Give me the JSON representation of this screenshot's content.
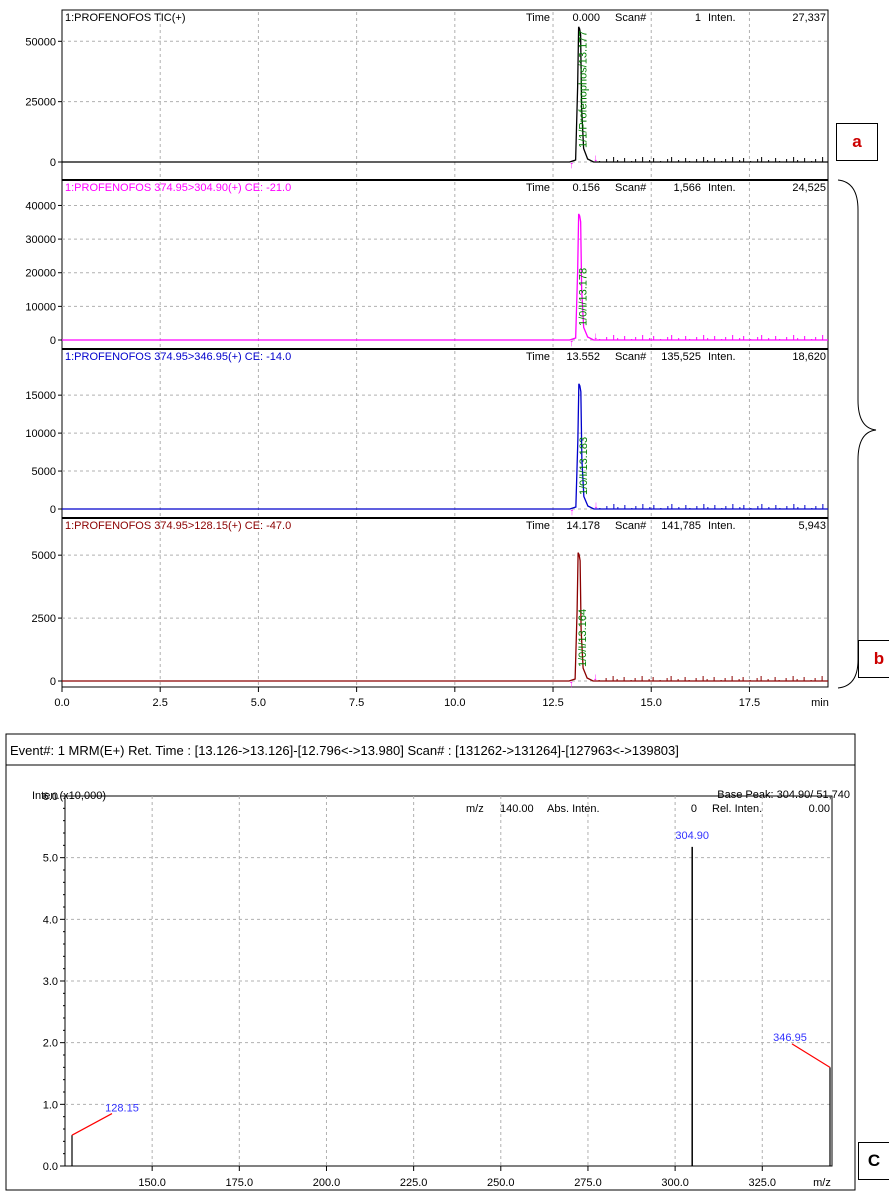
{
  "chromatogram": {
    "x_axis": {
      "unit": "min",
      "ticks": [
        "0.0",
        "2.5",
        "5.0",
        "7.5",
        "10.0",
        "12.5",
        "15.0",
        "17.5"
      ],
      "range": [
        0,
        19.5
      ]
    },
    "panels": [
      {
        "title": "1:PROFENOFOS TIC(+)",
        "color": "#000000",
        "time_label": "Time",
        "time": "0.000",
        "scan_label": "Scan#",
        "scan": "1",
        "inten_label": "Inten.",
        "inten": "27,337",
        "y_ticks": [
          "50000",
          "25000",
          "0"
        ],
        "y_tick_values": [
          50000,
          25000,
          0
        ],
        "y_max": 58000,
        "peak_label": "1/1/Profenophos/13.177",
        "peak_rt": 13.177,
        "peak_height": 56000
      },
      {
        "title": "1:PROFENOFOS 374.95>304.90(+) CE: -21.0",
        "color": "#ff00ff",
        "time_label": "Time",
        "time": "0.156",
        "scan_label": "Scan#",
        "scan": "1,566",
        "inten_label": "Inten.",
        "inten": "24,525",
        "y_ticks": [
          "40000",
          "30000",
          "20000",
          "10000",
          "0"
        ],
        "y_tick_values": [
          40000,
          30000,
          20000,
          10000,
          0
        ],
        "y_max": 44000,
        "peak_label": "1/0/I/13.178",
        "peak_rt": 13.178,
        "peak_height": 37500
      },
      {
        "title": "1:PROFENOFOS 374.95>346.95(+) CE: -14.0",
        "color": "#0000cc",
        "time_label": "Time",
        "time": "13.552",
        "scan_label": "Scan#",
        "scan": "135,525",
        "inten_label": "Inten.",
        "inten": "18,620",
        "y_ticks": [
          "15000",
          "10000",
          "5000",
          "0"
        ],
        "y_tick_values": [
          15000,
          10000,
          5000,
          0
        ],
        "y_max": 19500,
        "peak_label": "1/0/I/13.183",
        "peak_rt": 13.183,
        "peak_height": 16500
      },
      {
        "title": "1:PROFENOFOS 374.95>128.15(+) CE: -47.0",
        "color": "#8b0000",
        "time_label": "Time",
        "time": "14.178",
        "scan_label": "Scan#",
        "scan": "141,785",
        "inten_label": "Inten.",
        "inten": "5,943",
        "y_ticks": [
          "5000",
          "2500",
          "0"
        ],
        "y_tick_values": [
          5000,
          2500,
          0
        ],
        "y_max": 6000,
        "peak_label": "1/0/I/13.164",
        "peak_rt": 13.164,
        "peak_height": 5100
      }
    ]
  },
  "spectrum": {
    "header": "Event#: 1 MRM(E+)  Ret. Time : [13.126->13.126]-[12.796<->13.980]  Scan# : [131262->131264]-[127963<->139803]",
    "y_axis_label": "Inten.(x10,000)",
    "base_peak": "Base Peak: 304.90/ 51,740",
    "readout": {
      "mz_label": "m/z",
      "mz": "140.00",
      "abs_label": "Abs. Inten.",
      "abs": "0",
      "rel_label": "Rel. Inten.",
      "rel": "0.00"
    },
    "y_ticks": [
      "6.0",
      "5.0",
      "4.0",
      "3.0",
      "2.0",
      "1.0",
      "0.0"
    ],
    "x_ticks": [
      "150.0",
      "175.0",
      "200.0",
      "225.0",
      "250.0",
      "275.0",
      "300.0",
      "325.0"
    ],
    "x_unit": "m/z"
  },
  "chart_data": [
    {
      "type": "line",
      "title": "1:PROFENOFOS TIC(+)",
      "xlabel": "min",
      "x_range": [
        0,
        19.5
      ],
      "series": [
        {
          "name": "1:PROFENOFOS TIC(+)",
          "peak_rt": 13.177,
          "peak_height": 56000
        }
      ],
      "y_ticks": [
        50000,
        25000,
        0
      ]
    },
    {
      "type": "line",
      "title": "1:PROFENOFOS 374.95>304.90(+) CE: -21.0",
      "xlabel": "min",
      "series": [
        {
          "name": "1:PROFENOFOS 374.95>304.90(+) CE: -21.0",
          "peak_rt": 13.178,
          "peak_height": 37500
        }
      ],
      "y_ticks": [
        40000,
        30000,
        20000,
        10000,
        0
      ]
    },
    {
      "type": "line",
      "title": "1:PROFENOFOS 374.95>346.95(+) CE: -14.0",
      "xlabel": "min",
      "series": [
        {
          "name": "1:PROFENOFOS 374.95>346.95(+) CE: -14.0",
          "peak_rt": 13.183,
          "peak_height": 16500
        }
      ],
      "y_ticks": [
        15000,
        10000,
        5000,
        0
      ]
    },
    {
      "type": "line",
      "title": "1:PROFENOFOS 374.95>128.15(+) CE: -47.0",
      "xlabel": "min",
      "series": [
        {
          "name": "1:PROFENOFOS 374.95>128.15(+) CE: -47.0",
          "peak_rt": 13.164,
          "peak_height": 5100
        }
      ],
      "y_ticks": [
        5000,
        2500,
        0
      ]
    },
    {
      "type": "bar",
      "title": "Event#: 1 MRM(E+)",
      "xlabel": "m/z",
      "ylabel": "Inten.(x10,000)",
      "ylim": [
        0,
        6.0
      ],
      "x_range": [
        125,
        345
      ],
      "x": [
        128.15,
        304.9,
        346.95
      ],
      "values": [
        0.5,
        5.174,
        1.6
      ],
      "labels": [
        "128.15",
        "304.90",
        "346.95"
      ]
    }
  ],
  "side_labels": {
    "a": "a",
    "b": "b",
    "c": "C"
  },
  "colors": {
    "peak_label": "#008000",
    "marker": "#ff00ff",
    "spectrum_label": "#3333ff",
    "spectrum_side": "#ff0000",
    "box_label": "#cc0000"
  }
}
